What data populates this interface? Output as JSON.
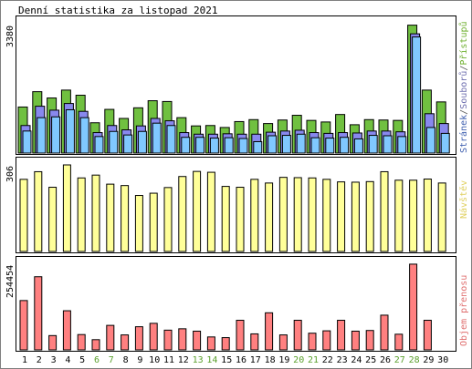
{
  "chart_data": {
    "title": "Denní statistika za listopad 2021",
    "categories": [
      "1",
      "2",
      "3",
      "4",
      "5",
      "6",
      "7",
      "8",
      "9",
      "10",
      "11",
      "12",
      "13",
      "14",
      "15",
      "16",
      "17",
      "18",
      "19",
      "20",
      "21",
      "22",
      "23",
      "24",
      "25",
      "26",
      "27",
      "28",
      "29",
      "30"
    ],
    "weekend_days": [
      6,
      7,
      13,
      14,
      20,
      21,
      27,
      28
    ],
    "panels": [
      {
        "type": "bar",
        "ytick_label": "3380",
        "ylim": [
          0,
          3380
        ],
        "legend": [
          {
            "text": "Stránek",
            "color": "#4060b0"
          },
          {
            "text": "/",
            "color": "#555555"
          },
          {
            "text": "Souborů",
            "color": "#7070b0"
          },
          {
            "text": "/",
            "color": "#555555"
          },
          {
            "text": "Přístupů",
            "color": "#70b030"
          }
        ],
        "series": [
          {
            "name": "Přístupů",
            "color": "#70c040",
            "values": [
              1170,
              1560,
              1400,
              1600,
              1470,
              770,
              1110,
              880,
              1150,
              1330,
              1310,
              900,
              690,
              700,
              650,
              800,
              850,
              750,
              840,
              960,
              830,
              790,
              980,
              720,
              850,
              840,
              830,
              3250,
              1600,
              1300
            ]
          },
          {
            "name": "Souborů",
            "color": "#8888ee",
            "values": [
              700,
              1190,
              1090,
              1260,
              1060,
              520,
              700,
              590,
              690,
              880,
              820,
              520,
              480,
              480,
              490,
              480,
              480,
              530,
              560,
              580,
              520,
              500,
              520,
              510,
              560,
              560,
              540,
              3030,
              1000,
              750
            ]
          },
          {
            "name": "Stránek",
            "color": "#80c8ff",
            "values": [
              560,
              900,
              920,
              1100,
              900,
              420,
              550,
              460,
              550,
              760,
              700,
              400,
              400,
              380,
              390,
              370,
              290,
              440,
              450,
              480,
              390,
              380,
              400,
              360,
              450,
              440,
              420,
              2950,
              650,
              500
            ]
          }
        ]
      },
      {
        "type": "bar",
        "ytick_label": "306",
        "ylim": [
          0,
          306
        ],
        "legend": [
          {
            "text": "Návštěv",
            "color": "#e0d060"
          }
        ],
        "series": [
          {
            "name": "Návštěv",
            "color": "#ffff99",
            "values": [
              255,
              282,
              227,
              306,
              260,
              270,
              238,
              233,
              198,
              206,
              226,
              265,
              283,
              280,
              230,
              227,
              255,
              242,
              262,
              261,
              260,
              255,
              246,
              245,
              247,
              282,
              252,
              252,
              256,
              242
            ]
          }
        ]
      },
      {
        "type": "bar",
        "ytick_label": "254454",
        "ylim": [
          0,
          254454
        ],
        "legend": [
          {
            "text": "Objem přenosu",
            "color": "#e07070"
          }
        ],
        "series": [
          {
            "name": "Objem přenosu",
            "color": "#ff8080",
            "values": [
              145000,
              215000,
              42000,
              115000,
              45000,
              30000,
              72000,
              44000,
              68000,
              78000,
              58000,
              62000,
              55000,
              38000,
              36000,
              87000,
              47000,
              109000,
              44000,
              87000,
              49000,
              56000,
              87000,
              55000,
              57000,
              102000,
              46000,
              252000,
              87000,
              0
            ]
          }
        ]
      }
    ]
  }
}
